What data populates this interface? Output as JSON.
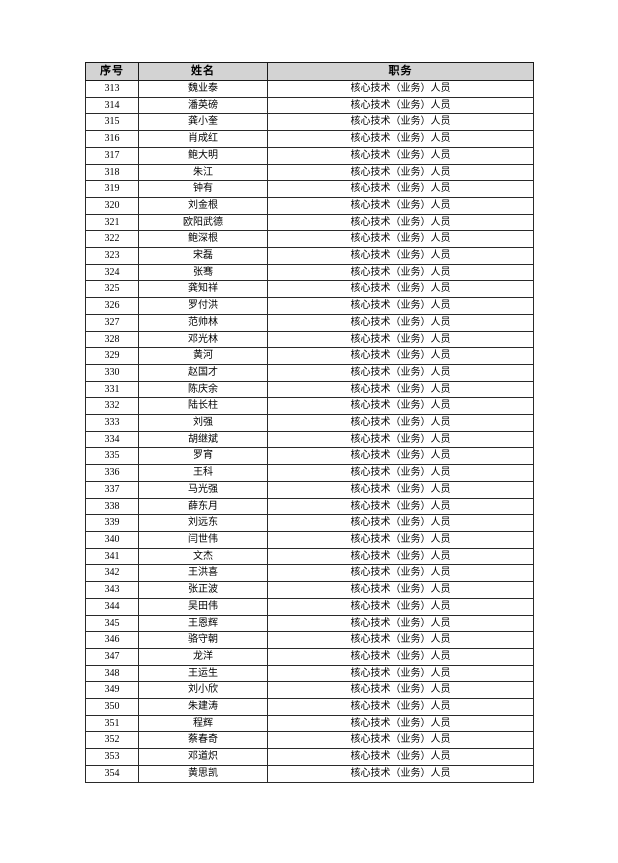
{
  "page": {
    "background": "#ffffff",
    "header_bg": "#d3d3d3",
    "border_color": "#2a2a2a"
  },
  "table": {
    "headers": [
      "序号",
      "姓名",
      "职务"
    ],
    "rows": [
      {
        "no": "313",
        "name": "魏业泰",
        "title": "核心技术（业务）人员"
      },
      {
        "no": "314",
        "name": "潘英磅",
        "title": "核心技术（业务）人员"
      },
      {
        "no": "315",
        "name": "龚小奎",
        "title": "核心技术（业务）人员"
      },
      {
        "no": "316",
        "name": "肖成红",
        "title": "核心技术（业务）人员"
      },
      {
        "no": "317",
        "name": "鲍大明",
        "title": "核心技术（业务）人员"
      },
      {
        "no": "318",
        "name": "朱江",
        "title": "核心技术（业务）人员"
      },
      {
        "no": "319",
        "name": "钟有",
        "title": "核心技术（业务）人员"
      },
      {
        "no": "320",
        "name": "刘金根",
        "title": "核心技术（业务）人员"
      },
      {
        "no": "321",
        "name": "欧阳武德",
        "title": "核心技术（业务）人员"
      },
      {
        "no": "322",
        "name": "鲍深根",
        "title": "核心技术（业务）人员"
      },
      {
        "no": "323",
        "name": "宋磊",
        "title": "核心技术（业务）人员"
      },
      {
        "no": "324",
        "name": "张骞",
        "title": "核心技术（业务）人员"
      },
      {
        "no": "325",
        "name": "龚知祥",
        "title": "核心技术（业务）人员"
      },
      {
        "no": "326",
        "name": "罗付洪",
        "title": "核心技术（业务）人员"
      },
      {
        "no": "327",
        "name": "范帅林",
        "title": "核心技术（业务）人员"
      },
      {
        "no": "328",
        "name": "邓光林",
        "title": "核心技术（业务）人员"
      },
      {
        "no": "329",
        "name": "黄河",
        "title": "核心技术（业务）人员"
      },
      {
        "no": "330",
        "name": "赵国才",
        "title": "核心技术（业务）人员"
      },
      {
        "no": "331",
        "name": "陈庆余",
        "title": "核心技术（业务）人员"
      },
      {
        "no": "332",
        "name": "陆长柱",
        "title": "核心技术（业务）人员"
      },
      {
        "no": "333",
        "name": "刘强",
        "title": "核心技术（业务）人员"
      },
      {
        "no": "334",
        "name": "胡继斌",
        "title": "核心技术（业务）人员"
      },
      {
        "no": "335",
        "name": "罗宵",
        "title": "核心技术（业务）人员"
      },
      {
        "no": "336",
        "name": "王科",
        "title": "核心技术（业务）人员"
      },
      {
        "no": "337",
        "name": "马光强",
        "title": "核心技术（业务）人员"
      },
      {
        "no": "338",
        "name": "薛东月",
        "title": "核心技术（业务）人员"
      },
      {
        "no": "339",
        "name": "刘远东",
        "title": "核心技术（业务）人员"
      },
      {
        "no": "340",
        "name": "闫世伟",
        "title": "核心技术（业务）人员"
      },
      {
        "no": "341",
        "name": "文杰",
        "title": "核心技术（业务）人员"
      },
      {
        "no": "342",
        "name": "王洪喜",
        "title": "核心技术（业务）人员"
      },
      {
        "no": "343",
        "name": "张正波",
        "title": "核心技术（业务）人员"
      },
      {
        "no": "344",
        "name": "吴田伟",
        "title": "核心技术（业务）人员"
      },
      {
        "no": "345",
        "name": "王恩辉",
        "title": "核心技术（业务）人员"
      },
      {
        "no": "346",
        "name": "骆守朝",
        "title": "核心技术（业务）人员"
      },
      {
        "no": "347",
        "name": "龙洋",
        "title": "核心技术（业务）人员"
      },
      {
        "no": "348",
        "name": "王运生",
        "title": "核心技术（业务）人员"
      },
      {
        "no": "349",
        "name": "刘小欣",
        "title": "核心技术（业务）人员"
      },
      {
        "no": "350",
        "name": "朱建涛",
        "title": "核心技术（业务）人员"
      },
      {
        "no": "351",
        "name": "程辉",
        "title": "核心技术（业务）人员"
      },
      {
        "no": "352",
        "name": "蔡春奇",
        "title": "核心技术（业务）人员"
      },
      {
        "no": "353",
        "name": "邓道炽",
        "title": "核心技术（业务）人员"
      },
      {
        "no": "354",
        "name": "黄思凯",
        "title": "核心技术（业务）人员"
      }
    ]
  }
}
